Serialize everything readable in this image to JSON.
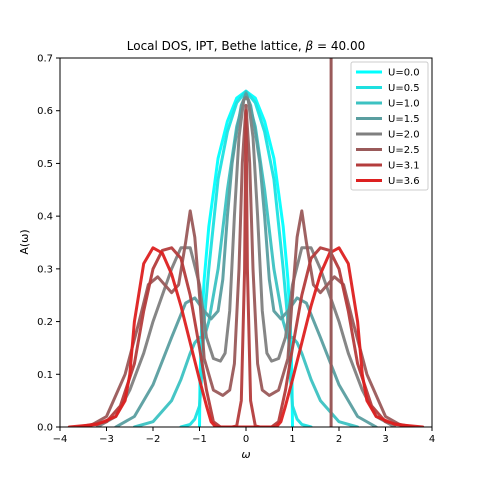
{
  "chart_data": {
    "type": "line",
    "title": "Local DOS, IPT, Bethe lattice, β = 40.00",
    "title_prefix": "Local DOS, IPT, Bethe lattice, ",
    "title_beta_symbol": "β",
    "title_beta_value": " = 40.00",
    "xlabel": "ω",
    "ylabel": "A(ω)",
    "xlim": [
      -4,
      4
    ],
    "ylim": [
      0,
      0.7
    ],
    "xticks": [
      -4,
      -3,
      -2,
      -1,
      0,
      1,
      2,
      3,
      4
    ],
    "yticks": [
      0.0,
      0.1,
      0.2,
      0.3,
      0.4,
      0.5,
      0.6,
      0.7
    ],
    "grid": false,
    "legend_position": "top-right",
    "vertical_line": {
      "x": 1.83,
      "color": "#9a5a5a"
    },
    "series": [
      {
        "name": "U=0.0",
        "color": "#00ffff",
        "x": [
          -1.0,
          -0.99,
          -0.95,
          -0.9,
          -0.8,
          -0.6,
          -0.4,
          -0.2,
          0,
          0.2,
          0.4,
          0.6,
          0.8,
          0.9,
          0.95,
          0.99,
          1.0
        ],
        "y": [
          0,
          0.09,
          0.2,
          0.28,
          0.38,
          0.51,
          0.58,
          0.624,
          0.637,
          0.624,
          0.58,
          0.51,
          0.38,
          0.28,
          0.2,
          0.09,
          0
        ]
      },
      {
        "name": "U=0.5",
        "color": "#1ee0e0",
        "x": [
          -1.4,
          -1.2,
          -1.1,
          -1.0,
          -0.95,
          -0.9,
          -0.8,
          -0.6,
          -0.4,
          -0.2,
          0,
          0.2,
          0.4,
          0.6,
          0.8,
          0.9,
          0.95,
          1.0,
          1.1,
          1.2,
          1.4
        ],
        "y": [
          0,
          0.005,
          0.015,
          0.04,
          0.1,
          0.2,
          0.3,
          0.47,
          0.56,
          0.615,
          0.637,
          0.615,
          0.56,
          0.47,
          0.3,
          0.2,
          0.1,
          0.04,
          0.015,
          0.005,
          0
        ]
      },
      {
        "name": "U=1.0",
        "color": "#3cc2c2",
        "x": [
          -2.4,
          -2.0,
          -1.6,
          -1.4,
          -1.2,
          -1.1,
          -1.0,
          -0.9,
          -0.8,
          -0.6,
          -0.4,
          -0.2,
          0,
          0.2,
          0.4,
          0.6,
          0.8,
          0.9,
          1.0,
          1.1,
          1.2,
          1.4,
          1.6,
          2.0,
          2.4
        ],
        "y": [
          0,
          0.01,
          0.05,
          0.09,
          0.14,
          0.16,
          0.17,
          0.17,
          0.2,
          0.3,
          0.45,
          0.57,
          0.635,
          0.57,
          0.45,
          0.3,
          0.2,
          0.17,
          0.17,
          0.16,
          0.14,
          0.09,
          0.05,
          0.01,
          0
        ]
      },
      {
        "name": "U=1.5",
        "color": "#5a9ea0",
        "x": [
          -2.8,
          -2.4,
          -2.0,
          -1.6,
          -1.3,
          -1.1,
          -0.9,
          -0.75,
          -0.6,
          -0.5,
          -0.4,
          -0.3,
          -0.2,
          -0.1,
          0,
          0.1,
          0.2,
          0.3,
          0.4,
          0.5,
          0.6,
          0.75,
          0.9,
          1.1,
          1.3,
          1.6,
          2.0,
          2.4,
          2.8
        ],
        "y": [
          0,
          0.02,
          0.08,
          0.17,
          0.235,
          0.245,
          0.22,
          0.205,
          0.22,
          0.28,
          0.4,
          0.5,
          0.56,
          0.61,
          0.632,
          0.61,
          0.56,
          0.5,
          0.4,
          0.28,
          0.22,
          0.205,
          0.22,
          0.245,
          0.235,
          0.17,
          0.08,
          0.02,
          0
        ]
      },
      {
        "name": "U=2.0",
        "color": "#7f7f7f",
        "x": [
          -3.2,
          -2.8,
          -2.5,
          -2.2,
          -2.0,
          -1.8,
          -1.6,
          -1.4,
          -1.2,
          -1.0,
          -0.85,
          -0.7,
          -0.55,
          -0.45,
          -0.35,
          -0.25,
          -0.15,
          -0.05,
          0,
          0.05,
          0.15,
          0.25,
          0.35,
          0.45,
          0.55,
          0.7,
          0.85,
          1.0,
          1.2,
          1.4,
          1.6,
          1.8,
          2.0,
          2.2,
          2.5,
          2.8,
          3.2
        ],
        "y": [
          0,
          0.02,
          0.07,
          0.14,
          0.2,
          0.25,
          0.3,
          0.34,
          0.34,
          0.27,
          0.17,
          0.13,
          0.125,
          0.14,
          0.22,
          0.4,
          0.55,
          0.62,
          0.625,
          0.62,
          0.55,
          0.4,
          0.22,
          0.14,
          0.125,
          0.13,
          0.17,
          0.27,
          0.34,
          0.34,
          0.3,
          0.25,
          0.2,
          0.14,
          0.07,
          0.02,
          0
        ]
      },
      {
        "name": "U=2.5",
        "color": "#9a5a5a",
        "x": [
          -3.4,
          -3.0,
          -2.6,
          -2.3,
          -2.1,
          -1.9,
          -1.75,
          -1.6,
          -1.45,
          -1.3,
          -1.2,
          -1.1,
          -1.0,
          -0.9,
          -0.7,
          -0.5,
          -0.35,
          -0.25,
          -0.15,
          -0.08,
          0,
          0.08,
          0.15,
          0.25,
          0.35,
          0.5,
          0.7,
          0.9,
          1.0,
          1.1,
          1.2,
          1.3,
          1.45,
          1.6,
          1.75,
          1.9,
          2.1,
          2.3,
          2.6,
          3.0,
          3.4
        ],
        "y": [
          0,
          0.02,
          0.1,
          0.2,
          0.27,
          0.285,
          0.27,
          0.255,
          0.27,
          0.35,
          0.41,
          0.36,
          0.25,
          0.13,
          0.07,
          0.06,
          0.07,
          0.12,
          0.3,
          0.5,
          0.61,
          0.5,
          0.3,
          0.12,
          0.07,
          0.06,
          0.07,
          0.13,
          0.25,
          0.36,
          0.41,
          0.35,
          0.27,
          0.255,
          0.27,
          0.285,
          0.27,
          0.2,
          0.1,
          0.02,
          0
        ]
      },
      {
        "name": "U=3.1",
        "color": "#b43c3c",
        "x": [
          -3.6,
          -3.0,
          -2.7,
          -2.4,
          -2.2,
          -2.0,
          -1.8,
          -1.6,
          -1.4,
          -1.2,
          -1.0,
          -0.85,
          -0.7,
          -0.55,
          -0.4,
          -0.3,
          -0.2,
          -0.1,
          -0.03,
          0,
          0.03,
          0.1,
          0.2,
          0.3,
          0.4,
          0.55,
          0.7,
          0.85,
          1.0,
          1.2,
          1.4,
          1.6,
          1.8,
          2.0,
          2.2,
          2.4,
          2.7,
          3.0,
          3.6
        ],
        "y": [
          0,
          0.01,
          0.04,
          0.12,
          0.22,
          0.3,
          0.335,
          0.34,
          0.32,
          0.25,
          0.15,
          0.07,
          0.01,
          0,
          0,
          0,
          0.002,
          0.05,
          0.3,
          0.6,
          0.3,
          0.05,
          0.002,
          0,
          0,
          0,
          0.01,
          0.07,
          0.15,
          0.25,
          0.32,
          0.34,
          0.335,
          0.3,
          0.22,
          0.12,
          0.04,
          0.01,
          0
        ]
      },
      {
        "name": "U=3.6",
        "color": "#dd2020",
        "x": [
          -3.8,
          -3.2,
          -2.8,
          -2.6,
          -2.5,
          -2.4,
          -2.2,
          -2.0,
          -1.8,
          -1.6,
          -1.4,
          -1.2,
          -1.0,
          -0.85,
          -0.75,
          -0.65,
          0.65,
          0.75,
          0.85,
          1.0,
          1.2,
          1.4,
          1.6,
          1.8,
          2.0,
          2.2,
          2.4,
          2.5,
          2.6,
          2.8,
          3.2,
          3.8
        ],
        "y": [
          0,
          0.005,
          0.02,
          0.05,
          0.1,
          0.2,
          0.31,
          0.34,
          0.33,
          0.29,
          0.23,
          0.16,
          0.09,
          0.04,
          0.01,
          0,
          0,
          0.01,
          0.04,
          0.09,
          0.16,
          0.23,
          0.29,
          0.33,
          0.34,
          0.31,
          0.2,
          0.1,
          0.05,
          0.02,
          0.005,
          0
        ]
      }
    ]
  }
}
